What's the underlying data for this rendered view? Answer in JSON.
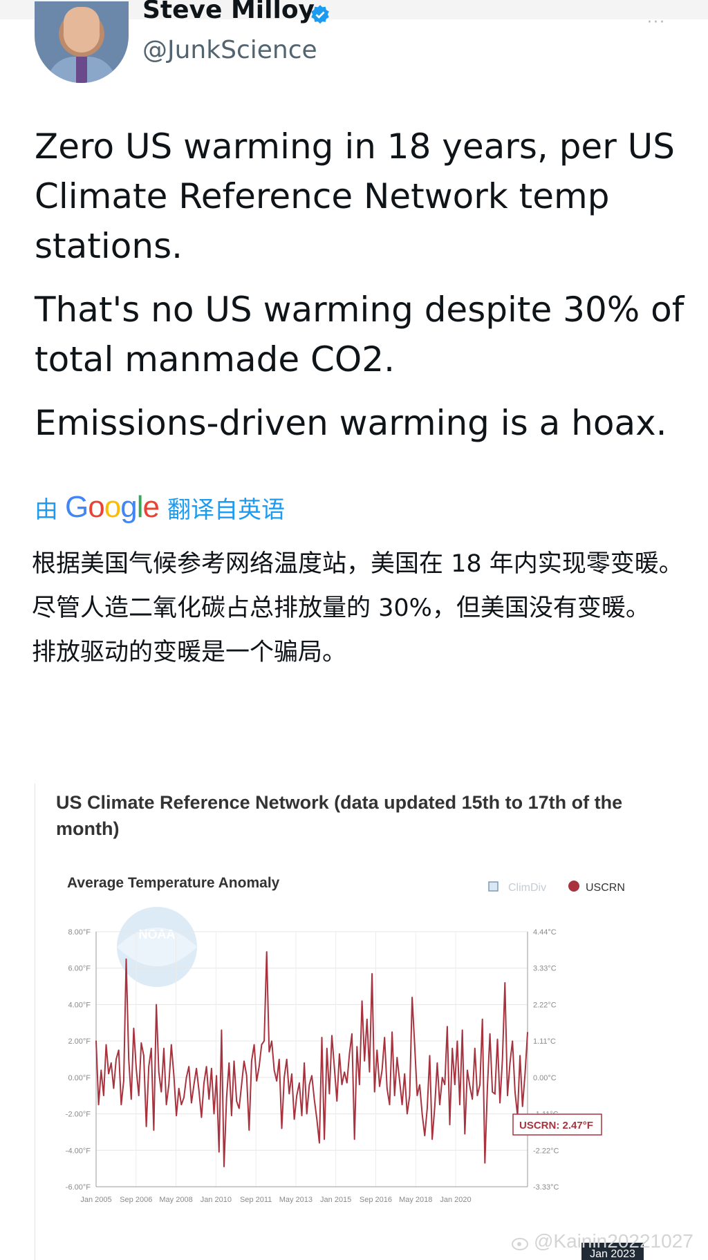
{
  "tweet": {
    "author": {
      "name": "Steve Milloy",
      "handle": "@JunkScience"
    },
    "paragraphs": [
      "Zero US warming in 18 years, per US Climate Reference Network temp stations.",
      "That's no US warming despite 30% of total manmade CO2.",
      "Emissions-driven warming is a hoax."
    ],
    "translation": {
      "by": "由",
      "google": "Google",
      "from": "翻译自英语",
      "paragraphs": [
        "根据美国气候参考网络温度站，美国在 18 年内实现零变暖。",
        "尽管人造二氧化碳占总排放量的 30%，但美国没有变暖。",
        "排放驱动的变暖是一个骗局。"
      ]
    }
  },
  "chart_card": {
    "title": "US Climate Reference Network (data updated 15th to 17th of the month)"
  },
  "chart_data": {
    "type": "line",
    "title": "Average Temperature Anomaly",
    "legend": [
      "ClimDiv",
      "USCRN"
    ],
    "legend_placement": "top-right",
    "series_color": "#a8323e",
    "y_left_ticks": [
      "8.00°F",
      "6.00°F",
      "4.00°F",
      "2.00°F",
      "0.00°F",
      "-2.00°F",
      "-4.00°F",
      "-6.00°F"
    ],
    "y_right_ticks": [
      "4.44°C",
      "3.33°C",
      "2.22°C",
      "1.11°C",
      "0.00°C",
      "-1.11°C",
      "-2.22°C",
      "-3.33°C"
    ],
    "x_ticks": [
      "Jan 2005",
      "Sep 2006",
      "May 2008",
      "Jan 2010",
      "Sep 2011",
      "May 2013",
      "Jan 2015",
      "Sep 2016",
      "May 2018",
      "Jan 2020"
    ],
    "x_highlight": "Jan 2023",
    "ylim": [
      -6,
      8
    ],
    "tooltip": "USCRN: 2.47°F",
    "grid": true,
    "series": [
      {
        "name": "USCRN",
        "start": "Jan 2005",
        "end": "Jan 2023",
        "values": [
          2.0,
          -1.5,
          0.4,
          -1.0,
          1.8,
          0.2,
          0.8,
          -0.6,
          1.0,
          1.5,
          -1.5,
          -0.2,
          6.5,
          1.0,
          -1.2,
          2.7,
          0.5,
          -1.0,
          1.9,
          1.2,
          -2.7,
          0.6,
          1.6,
          -2.9,
          4.0,
          0.3,
          -0.8,
          1.6,
          -1.5,
          -0.4,
          1.8,
          0.1,
          -2.1,
          -0.6,
          -1.5,
          -1.1,
          0.0,
          0.6,
          -1.4,
          -0.4,
          0.5,
          -0.7,
          -2.2,
          -0.3,
          0.6,
          -1.2,
          0.5,
          -2.0,
          0.1,
          -4.1,
          2.6,
          -4.9,
          -1.1,
          0.8,
          -2.1,
          0.9,
          -1.3,
          -1.7,
          -0.4,
          0.9,
          0.1,
          -2.9,
          0.9,
          1.8,
          -0.2,
          0.6,
          1.8,
          2.0,
          6.9,
          1.4,
          2.0,
          0.4,
          -0.2,
          1.0,
          -2.8,
          0.0,
          1.0,
          -0.9,
          0.2,
          -2.3,
          -1.0,
          -0.3,
          -2.1,
          0.8,
          -2.0,
          -0.4,
          0.1,
          -1.2,
          -2.3,
          -3.6,
          2.2,
          -3.4,
          1.6,
          -0.9,
          2.3,
          0.5,
          -1.3,
          1.3,
          -0.4,
          0.3,
          -0.3,
          1.3,
          2.4,
          -3.4,
          1.7,
          -0.4,
          4.2,
          0.9,
          3.2,
          0.3,
          5.7,
          -0.8,
          1.5,
          -0.5,
          0.4,
          2.2,
          -0.6,
          -1.5,
          2.5,
          -1.0,
          1.1,
          -0.2,
          -1.5,
          0.2,
          -2.0,
          -1.0,
          4.4,
          1.8,
          -1.0,
          -0.4,
          -2.0,
          -3.2,
          -1.7,
          1.2,
          -3.4,
          -1.6,
          0.8,
          -1.5,
          0.0,
          -0.4,
          2.8,
          -2.6,
          1.6,
          -0.4,
          2.0,
          -1.5,
          2.6,
          -3.1,
          0.4,
          -0.5,
          -1.2,
          1.6,
          -1.0,
          -0.4,
          3.2,
          -4.7,
          -0.5,
          2.4,
          -0.8,
          -0.9,
          2.1,
          -1.4,
          1.0,
          5.2,
          -1.0,
          0.8,
          2.0,
          -0.8,
          -2.1,
          1.2,
          -1.6,
          0.2,
          2.47
        ]
      }
    ]
  },
  "watermark": "@Kainin20221027"
}
